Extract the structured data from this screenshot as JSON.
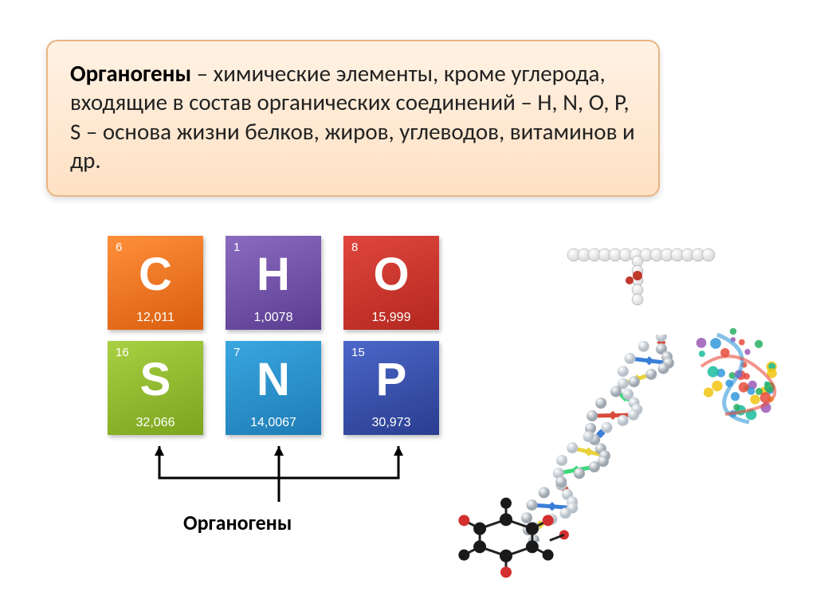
{
  "definition": {
    "term": "Органогены",
    "text": " – химические элементы, кроме углерода, входящие в состав органических соединений – H, N, O, P, S – основа жизни белков, жиров, углеводов, витаминов и др.",
    "box_bg_gradient": [
      "#fff2e4",
      "#ffe1c4"
    ],
    "box_border": "#e9b584",
    "fontsize": 29
  },
  "elements": {
    "row1": [
      {
        "num": "6",
        "sym": "C",
        "mass": "12,011",
        "grad": [
          "#ff8f3a",
          "#d95e0e"
        ]
      },
      {
        "num": "1",
        "sym": "H",
        "mass": "1,0078",
        "grad": [
          "#8a6bbf",
          "#5a3c90"
        ]
      },
      {
        "num": "8",
        "sym": "O",
        "mass": "15,999",
        "grad": [
          "#e0463d",
          "#b32820"
        ]
      }
    ],
    "row2": [
      {
        "num": "16",
        "sym": "S",
        "mass": "32,066",
        "grad": [
          "#a9d042",
          "#7ca41e"
        ]
      },
      {
        "num": "7",
        "sym": "N",
        "mass": "14,0067",
        "grad": [
          "#3aa6e0",
          "#1e7cb5"
        ]
      },
      {
        "num": "15",
        "sym": "P",
        "mass": "30,973",
        "grad": [
          "#4b67c9",
          "#2a3d8f"
        ]
      }
    ]
  },
  "label": "Органогены",
  "connector_color": "#000000",
  "dna": {
    "backbone1": "#9ea7b0",
    "backbone2": "#b8c1ca",
    "base_colors": [
      "#d94a3a",
      "#3a7ed9",
      "#e9d23a",
      "#3ad97a"
    ]
  },
  "lipid": {
    "sphere": "#d8d8d8",
    "highlight": "#ffffff",
    "center": "#c0392b"
  },
  "protein": {
    "colors": [
      "#3498db",
      "#27ae60",
      "#e74c3c",
      "#f1c40f",
      "#9b59b6",
      "#1abc9c"
    ]
  },
  "molecule": {
    "carbon": "#1a1a1a",
    "oxygen": "#d32f2f",
    "bond": "#222"
  }
}
